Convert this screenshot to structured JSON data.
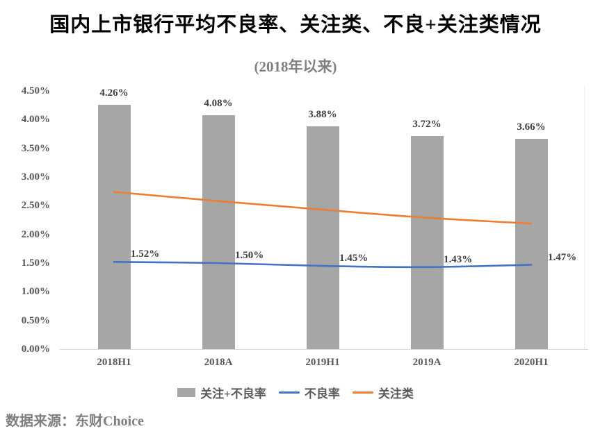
{
  "title": "国内上市银行平均不良率、关注类、不良+关注类情况",
  "subtitle": "(2018年以来)",
  "source": "数据来源：东财Choice",
  "colors": {
    "bar": "#a6a6a6",
    "npl_line": "#4472c4",
    "concern_line": "#ed7d31",
    "axis_line": "#d9d9d9",
    "tick_text": "#595959",
    "data_label_text": "#3f3f3f",
    "subtitle_text": "#7f7f7f",
    "source_text": "#7f7f7f",
    "title_text": "#000000"
  },
  "chart_data": {
    "type": "bar",
    "subtype": "combo-bar-line",
    "categories": [
      "2018H1",
      "2018A",
      "2019H1",
      "2019A",
      "2020H1"
    ],
    "series": [
      {
        "name": "关注+不良率",
        "kind": "bar",
        "color": "#a6a6a6",
        "values": [
          4.26,
          4.08,
          3.88,
          3.72,
          3.66
        ],
        "labels": [
          "4.26%",
          "4.08%",
          "3.88%",
          "3.72%",
          "3.66%"
        ]
      },
      {
        "name": "不良率",
        "kind": "line",
        "color": "#4472c4",
        "values": [
          1.52,
          1.5,
          1.45,
          1.43,
          1.47
        ],
        "labels": [
          "1.52%",
          "1.50%",
          "1.45%",
          "1.43%",
          "1.47%"
        ]
      },
      {
        "name": "关注类",
        "kind": "line",
        "color": "#ed7d31",
        "values": [
          2.74,
          2.58,
          2.43,
          2.29,
          2.19
        ],
        "labels": []
      }
    ],
    "yticks": [
      "4.50%",
      "4.00%",
      "3.50%",
      "3.00%",
      "2.50%",
      "2.00%",
      "1.50%",
      "1.00%",
      "0.50%",
      "0.00%"
    ],
    "ylim": [
      0,
      4.5
    ],
    "xlabel": "",
    "ylabel": "",
    "grid": false,
    "legend_position": "bottom"
  }
}
